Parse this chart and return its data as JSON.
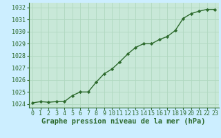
{
  "x": [
    0,
    1,
    2,
    3,
    4,
    5,
    6,
    7,
    8,
    9,
    10,
    11,
    12,
    13,
    14,
    15,
    16,
    17,
    18,
    19,
    20,
    21,
    22,
    23
  ],
  "y": [
    1024.1,
    1024.2,
    1024.15,
    1024.2,
    1024.2,
    1024.7,
    1025.0,
    1025.0,
    1025.8,
    1026.5,
    1026.9,
    1027.5,
    1028.15,
    1028.7,
    1029.0,
    1029.0,
    1029.35,
    1029.6,
    1030.1,
    1031.1,
    1031.5,
    1031.7,
    1031.85,
    1031.85
  ],
  "xlim": [
    -0.5,
    23.5
  ],
  "ylim": [
    1023.7,
    1032.4
  ],
  "yticks": [
    1024,
    1025,
    1026,
    1027,
    1028,
    1029,
    1030,
    1031,
    1032
  ],
  "xticks": [
    0,
    1,
    2,
    3,
    4,
    5,
    6,
    7,
    8,
    9,
    10,
    11,
    12,
    13,
    14,
    15,
    16,
    17,
    18,
    19,
    20,
    21,
    22,
    23
  ],
  "xlabel": "Graphe pression niveau de la mer (hPa)",
  "line_color": "#2d6a2d",
  "marker": "D",
  "marker_size": 2.2,
  "bg_color": "#cceeff",
  "plot_bg_color": "#c8e8d8",
  "grid_color": "#b0d8c0",
  "tick_label_color": "#2d6a2d",
  "xlabel_color": "#2d6a2d",
  "tick_fontsize": 6.0,
  "xlabel_fontsize": 7.5,
  "linewidth": 1.0
}
